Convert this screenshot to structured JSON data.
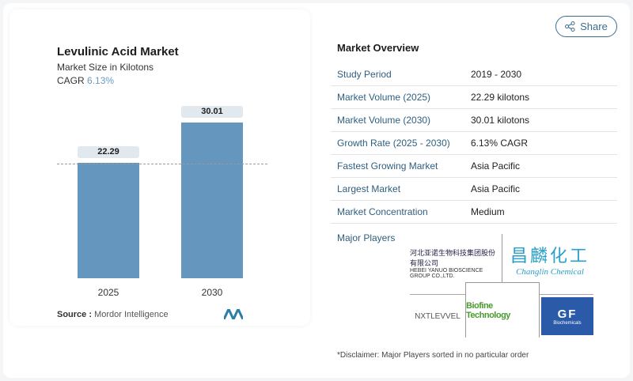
{
  "chart_data": {
    "type": "bar",
    "title": "Levulinic Acid Market",
    "subtitle": "Market Size in Kilotons",
    "cagr_label": "CAGR",
    "cagr_value": "6.13%",
    "categories": [
      "2025",
      "2030"
    ],
    "values": [
      22.29,
      30.01
    ],
    "value_labels": [
      "22.29",
      "30.01"
    ],
    "bar_color": "#6596bd"
  },
  "source": {
    "label": "Source :",
    "value": "Mordor Intelligence"
  },
  "share_label": "Share",
  "overview": {
    "title": "Market Overview",
    "rows": [
      {
        "k": "Study Period",
        "v": "2019 - 2030"
      },
      {
        "k": "Market Volume (2025)",
        "v": "22.29 kilotons"
      },
      {
        "k": "Market Volume (2030)",
        "v": "30.01 kilotons"
      },
      {
        "k": "Growth Rate (2025 - 2030)",
        "v": "6.13% CAGR"
      },
      {
        "k": "Fastest Growing Market",
        "v": "Asia Pacific"
      },
      {
        "k": "Largest Market",
        "v": "Asia Pacific"
      },
      {
        "k": "Market Concentration",
        "v": "Medium"
      }
    ],
    "major_players_label": "Major Players",
    "players": [
      "HEBEI YANUO BIOSCIENCE GROUP CO.,LTD.",
      "Changlin Chemical",
      "NXTLEVVEL",
      "Biofine Technology",
      "GF Biochemicals"
    ],
    "disclaimer": "*Disclaimer: Major Players sorted in no particular order"
  }
}
